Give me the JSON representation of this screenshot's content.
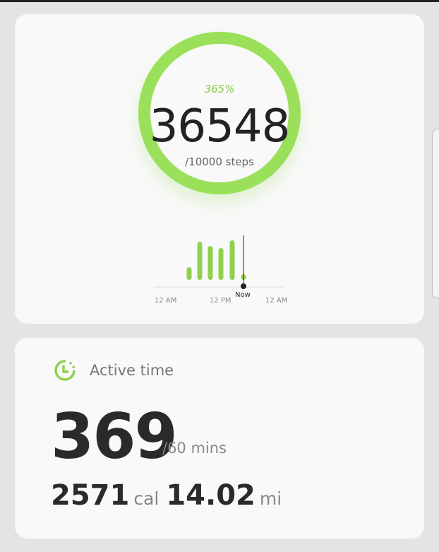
{
  "steps": {
    "percent": "365%",
    "count": "36548",
    "goal": "/10000 steps",
    "progress": 3.65,
    "ring_color": "#9be05a"
  },
  "chart_data": {
    "type": "bar",
    "values": [
      18,
      54,
      48,
      45,
      56,
      8
    ],
    "x_labels": [
      "12 AM",
      "12 PM",
      "12 AM"
    ],
    "now_label": "Now",
    "bar_color": "#8fd14f"
  },
  "active": {
    "title": "Active time",
    "minutes": "369",
    "goal": "/60 mins",
    "calories": "2571",
    "calories_unit": "cal",
    "distance": "14.02",
    "distance_unit": "mi",
    "icon": "clock-icon"
  }
}
